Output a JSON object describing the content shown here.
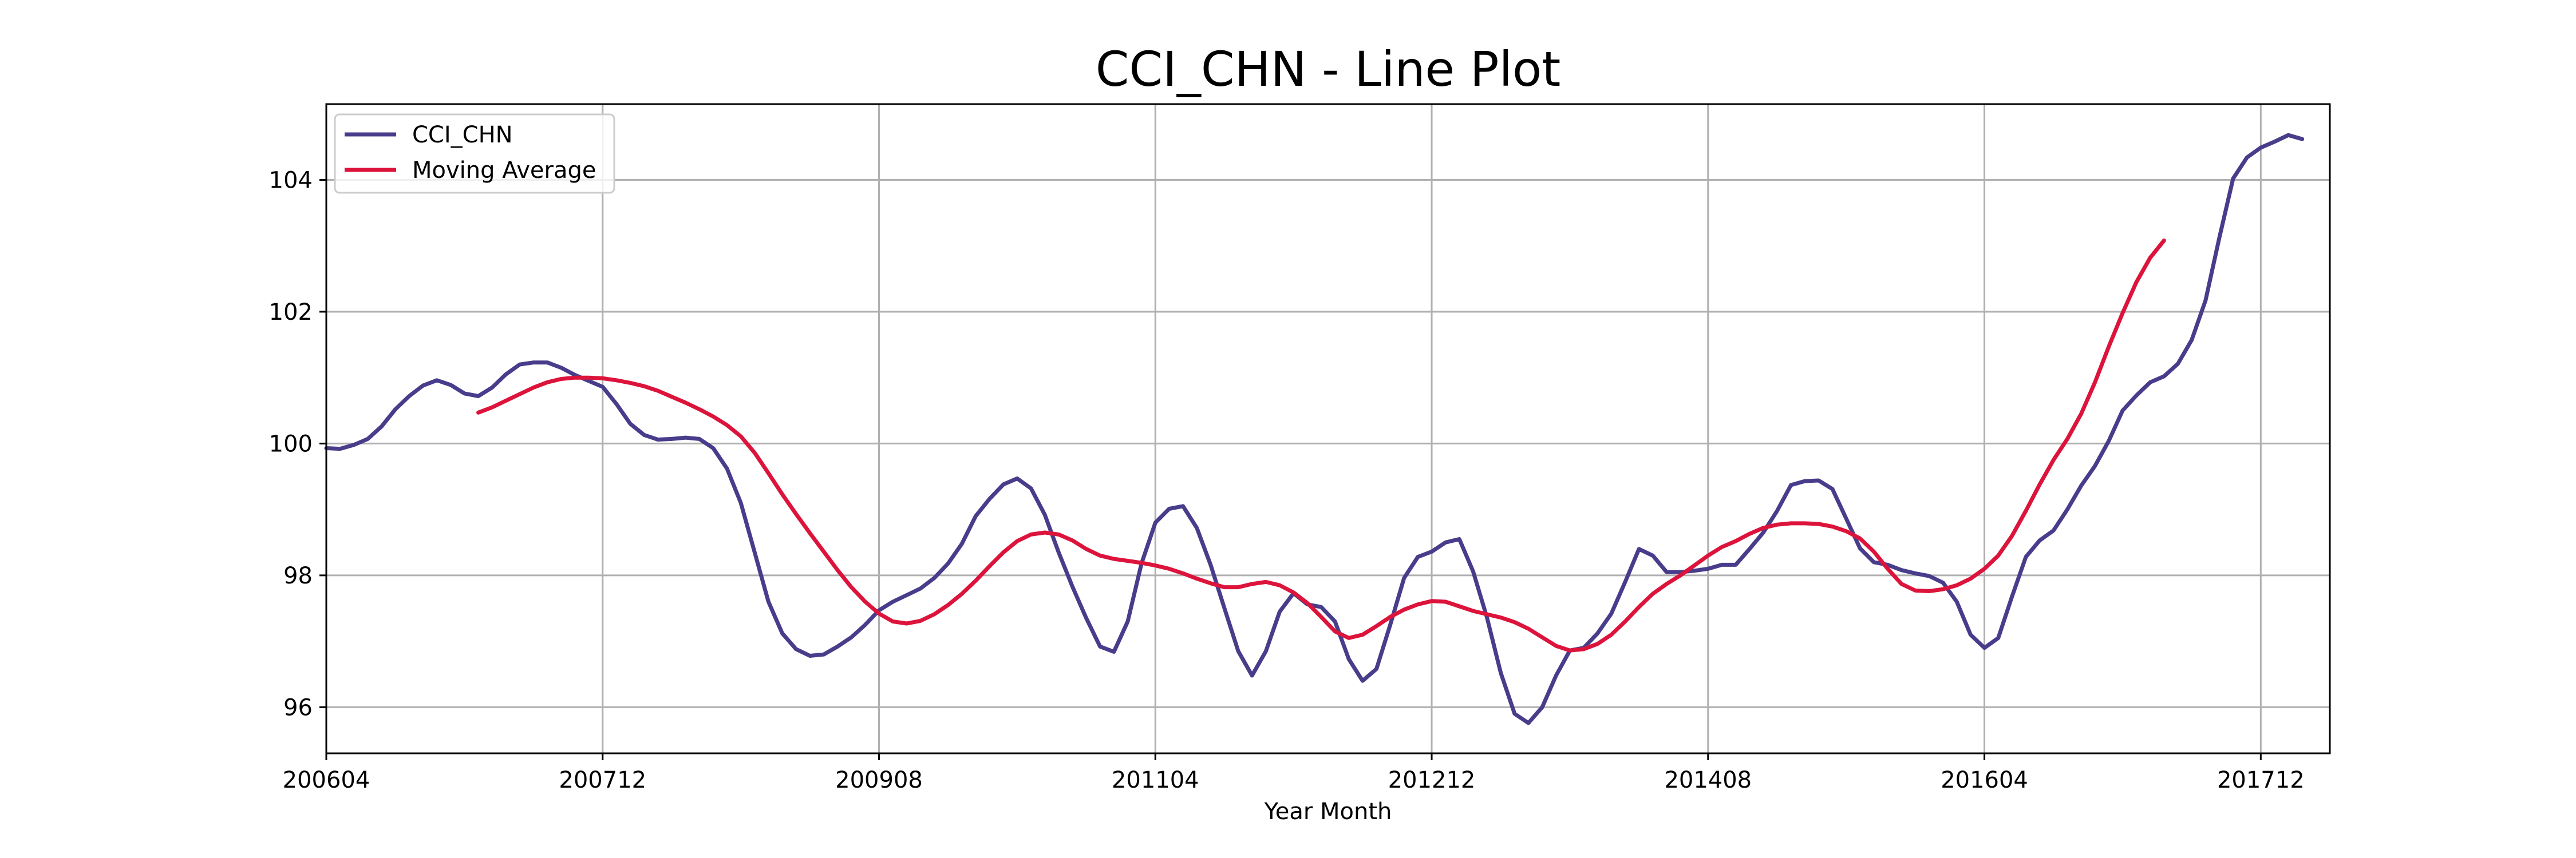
{
  "chart_data": {
    "type": "line",
    "title": "CCI_CHN - Line Plot",
    "xlabel": "Year Month",
    "ylabel": "",
    "x_range": [
      200601,
      201806
    ],
    "xlim": [
      0,
      145
    ],
    "ylim": [
      95.3,
      105.15
    ],
    "x_tick_labels": [
      "200604",
      "200712",
      "200908",
      "201104",
      "201212",
      "201408",
      "201604",
      "201712"
    ],
    "x_tick_index": [
      0,
      20,
      40,
      60,
      80,
      100,
      120,
      140
    ],
    "y_ticks": [
      96,
      98,
      100,
      102,
      104
    ],
    "grid": true,
    "legend_position": "top-left",
    "series": [
      {
        "name": "CCI_CHN",
        "color": "#483d8b",
        "points": [
          [
            0,
            99.93
          ],
          [
            1,
            99.92
          ],
          [
            2,
            99.98
          ],
          [
            3,
            100.07
          ],
          [
            4,
            100.26
          ],
          [
            5,
            100.52
          ],
          [
            6,
            100.72
          ],
          [
            7,
            100.88
          ],
          [
            8,
            100.96
          ],
          [
            9,
            100.89
          ],
          [
            10,
            100.76
          ],
          [
            11,
            100.72
          ],
          [
            12,
            100.85
          ],
          [
            13,
            101.05
          ],
          [
            14,
            101.2
          ],
          [
            15,
            101.23
          ],
          [
            16,
            101.23
          ],
          [
            17,
            101.15
          ],
          [
            18,
            101.04
          ],
          [
            19,
            100.95
          ],
          [
            20,
            100.86
          ],
          [
            21,
            100.6
          ],
          [
            22,
            100.3
          ],
          [
            23,
            100.13
          ],
          [
            24,
            100.06
          ],
          [
            25,
            100.07
          ],
          [
            26,
            100.09
          ],
          [
            27,
            100.07
          ],
          [
            28,
            99.93
          ],
          [
            29,
            99.62
          ],
          [
            30,
            99.1
          ],
          [
            31,
            98.35
          ],
          [
            32,
            97.6
          ],
          [
            33,
            97.12
          ],
          [
            34,
            96.88
          ],
          [
            35,
            96.78
          ],
          [
            36,
            96.8
          ],
          [
            37,
            96.92
          ],
          [
            38,
            97.06
          ],
          [
            39,
            97.25
          ],
          [
            40,
            97.47
          ],
          [
            41,
            97.6
          ],
          [
            42,
            97.7
          ],
          [
            43,
            97.8
          ],
          [
            44,
            97.96
          ],
          [
            45,
            98.18
          ],
          [
            46,
            98.48
          ],
          [
            47,
            98.9
          ],
          [
            48,
            99.16
          ],
          [
            49,
            99.38
          ],
          [
            50,
            99.47
          ],
          [
            51,
            99.32
          ],
          [
            52,
            98.92
          ],
          [
            53,
            98.35
          ],
          [
            54,
            97.83
          ],
          [
            55,
            97.35
          ],
          [
            56,
            96.92
          ],
          [
            57,
            96.84
          ],
          [
            58,
            97.3
          ],
          [
            59,
            98.18
          ],
          [
            60,
            98.8
          ],
          [
            61,
            99.01
          ],
          [
            62,
            99.05
          ],
          [
            63,
            98.72
          ],
          [
            64,
            98.16
          ],
          [
            65,
            97.5
          ],
          [
            66,
            96.85
          ],
          [
            67,
            96.48
          ],
          [
            68,
            96.85
          ],
          [
            69,
            97.45
          ],
          [
            70,
            97.73
          ],
          [
            71,
            97.56
          ],
          [
            72,
            97.52
          ],
          [
            73,
            97.3
          ],
          [
            74,
            96.73
          ],
          [
            75,
            96.4
          ],
          [
            76,
            96.58
          ],
          [
            77,
            97.25
          ],
          [
            78,
            97.96
          ],
          [
            79,
            98.28
          ],
          [
            80,
            98.36
          ],
          [
            81,
            98.5
          ],
          [
            82,
            98.55
          ],
          [
            83,
            98.06
          ],
          [
            84,
            97.36
          ],
          [
            85,
            96.52
          ],
          [
            86,
            95.9
          ],
          [
            87,
            95.76
          ],
          [
            88,
            96.0
          ],
          [
            89,
            96.48
          ],
          [
            90,
            96.86
          ],
          [
            91,
            96.9
          ],
          [
            92,
            97.12
          ],
          [
            93,
            97.42
          ],
          [
            94,
            97.9
          ],
          [
            95,
            98.4
          ],
          [
            96,
            98.3
          ],
          [
            97,
            98.05
          ],
          [
            98,
            98.05
          ],
          [
            99,
            98.07
          ],
          [
            100,
            98.1
          ],
          [
            101,
            98.16
          ],
          [
            102,
            98.16
          ],
          [
            103,
            98.4
          ],
          [
            104,
            98.65
          ],
          [
            105,
            98.98
          ],
          [
            106,
            99.37
          ],
          [
            107,
            99.43
          ],
          [
            108,
            99.44
          ],
          [
            109,
            99.31
          ],
          [
            110,
            98.86
          ],
          [
            111,
            98.41
          ],
          [
            112,
            98.2
          ],
          [
            113,
            98.16
          ],
          [
            114,
            98.08
          ],
          [
            115,
            98.03
          ],
          [
            116,
            97.99
          ],
          [
            117,
            97.89
          ],
          [
            118,
            97.6
          ],
          [
            119,
            97.1
          ],
          [
            120,
            96.9
          ],
          [
            121,
            97.05
          ],
          [
            122,
            97.68
          ],
          [
            123,
            98.28
          ],
          [
            124,
            98.53
          ],
          [
            125,
            98.68
          ],
          [
            126,
            99.0
          ],
          [
            127,
            99.36
          ],
          [
            128,
            99.66
          ],
          [
            129,
            100.04
          ],
          [
            130,
            100.5
          ],
          [
            131,
            100.73
          ],
          [
            132,
            100.93
          ],
          [
            133,
            101.02
          ],
          [
            134,
            101.21
          ],
          [
            135,
            101.57
          ],
          [
            136,
            102.17
          ],
          [
            137,
            103.12
          ],
          [
            138,
            104.02
          ],
          [
            139,
            104.34
          ],
          [
            140,
            104.49
          ],
          [
            141,
            104.58
          ],
          [
            142,
            104.68
          ],
          [
            143,
            104.62
          ]
        ]
      },
      {
        "name": "Moving Average",
        "color": "#dc143c",
        "points": [
          [
            11,
            100.47
          ],
          [
            12,
            100.55
          ],
          [
            13,
            100.65
          ],
          [
            14,
            100.75
          ],
          [
            15,
            100.85
          ],
          [
            16,
            100.93
          ],
          [
            17,
            100.98
          ],
          [
            18,
            101.0
          ],
          [
            19,
            101.0
          ],
          [
            20,
            100.99
          ],
          [
            21,
            100.96
          ],
          [
            22,
            100.92
          ],
          [
            23,
            100.87
          ],
          [
            24,
            100.8
          ],
          [
            25,
            100.71
          ],
          [
            26,
            100.62
          ],
          [
            27,
            100.52
          ],
          [
            28,
            100.41
          ],
          [
            29,
            100.28
          ],
          [
            30,
            100.11
          ],
          [
            31,
            99.86
          ],
          [
            32,
            99.55
          ],
          [
            33,
            99.23
          ],
          [
            34,
            98.93
          ],
          [
            35,
            98.64
          ],
          [
            36,
            98.36
          ],
          [
            37,
            98.08
          ],
          [
            38,
            97.82
          ],
          [
            39,
            97.6
          ],
          [
            40,
            97.42
          ],
          [
            41,
            97.3
          ],
          [
            42,
            97.27
          ],
          [
            43,
            97.31
          ],
          [
            44,
            97.41
          ],
          [
            45,
            97.55
          ],
          [
            46,
            97.72
          ],
          [
            47,
            97.92
          ],
          [
            48,
            98.14
          ],
          [
            49,
            98.35
          ],
          [
            50,
            98.52
          ],
          [
            51,
            98.62
          ],
          [
            52,
            98.65
          ],
          [
            53,
            98.62
          ],
          [
            54,
            98.53
          ],
          [
            55,
            98.4
          ],
          [
            56,
            98.3
          ],
          [
            57,
            98.25
          ],
          [
            58,
            98.22
          ],
          [
            59,
            98.19
          ],
          [
            60,
            98.15
          ],
          [
            61,
            98.1
          ],
          [
            62,
            98.03
          ],
          [
            63,
            97.95
          ],
          [
            64,
            97.88
          ],
          [
            65,
            97.82
          ],
          [
            66,
            97.82
          ],
          [
            67,
            97.87
          ],
          [
            68,
            97.9
          ],
          [
            69,
            97.85
          ],
          [
            70,
            97.74
          ],
          [
            71,
            97.58
          ],
          [
            72,
            97.37
          ],
          [
            73,
            97.15
          ],
          [
            74,
            97.05
          ],
          [
            75,
            97.1
          ],
          [
            76,
            97.23
          ],
          [
            77,
            97.37
          ],
          [
            78,
            97.48
          ],
          [
            79,
            97.56
          ],
          [
            80,
            97.61
          ],
          [
            81,
            97.6
          ],
          [
            82,
            97.53
          ],
          [
            83,
            97.46
          ],
          [
            84,
            97.41
          ],
          [
            85,
            97.36
          ],
          [
            86,
            97.29
          ],
          [
            87,
            97.19
          ],
          [
            88,
            97.06
          ],
          [
            89,
            96.93
          ],
          [
            90,
            96.86
          ],
          [
            91,
            96.88
          ],
          [
            92,
            96.96
          ],
          [
            93,
            97.1
          ],
          [
            94,
            97.3
          ],
          [
            95,
            97.52
          ],
          [
            96,
            97.72
          ],
          [
            97,
            97.87
          ],
          [
            98,
            98.0
          ],
          [
            99,
            98.15
          ],
          [
            100,
            98.3
          ],
          [
            101,
            98.43
          ],
          [
            102,
            98.52
          ],
          [
            103,
            98.63
          ],
          [
            104,
            98.72
          ],
          [
            105,
            98.77
          ],
          [
            106,
            98.79
          ],
          [
            107,
            98.79
          ],
          [
            108,
            98.78
          ],
          [
            109,
            98.74
          ],
          [
            110,
            98.67
          ],
          [
            111,
            98.56
          ],
          [
            112,
            98.36
          ],
          [
            113,
            98.1
          ],
          [
            114,
            97.87
          ],
          [
            115,
            97.77
          ],
          [
            116,
            97.76
          ],
          [
            117,
            97.79
          ],
          [
            118,
            97.85
          ],
          [
            119,
            97.95
          ],
          [
            120,
            98.1
          ],
          [
            121,
            98.3
          ],
          [
            122,
            98.6
          ],
          [
            123,
            98.98
          ],
          [
            124,
            99.38
          ],
          [
            125,
            99.75
          ],
          [
            126,
            100.07
          ],
          [
            127,
            100.45
          ],
          [
            128,
            100.93
          ],
          [
            129,
            101.47
          ],
          [
            130,
            101.98
          ],
          [
            131,
            102.45
          ],
          [
            132,
            102.82
          ],
          [
            133,
            103.08
          ]
        ]
      }
    ]
  }
}
